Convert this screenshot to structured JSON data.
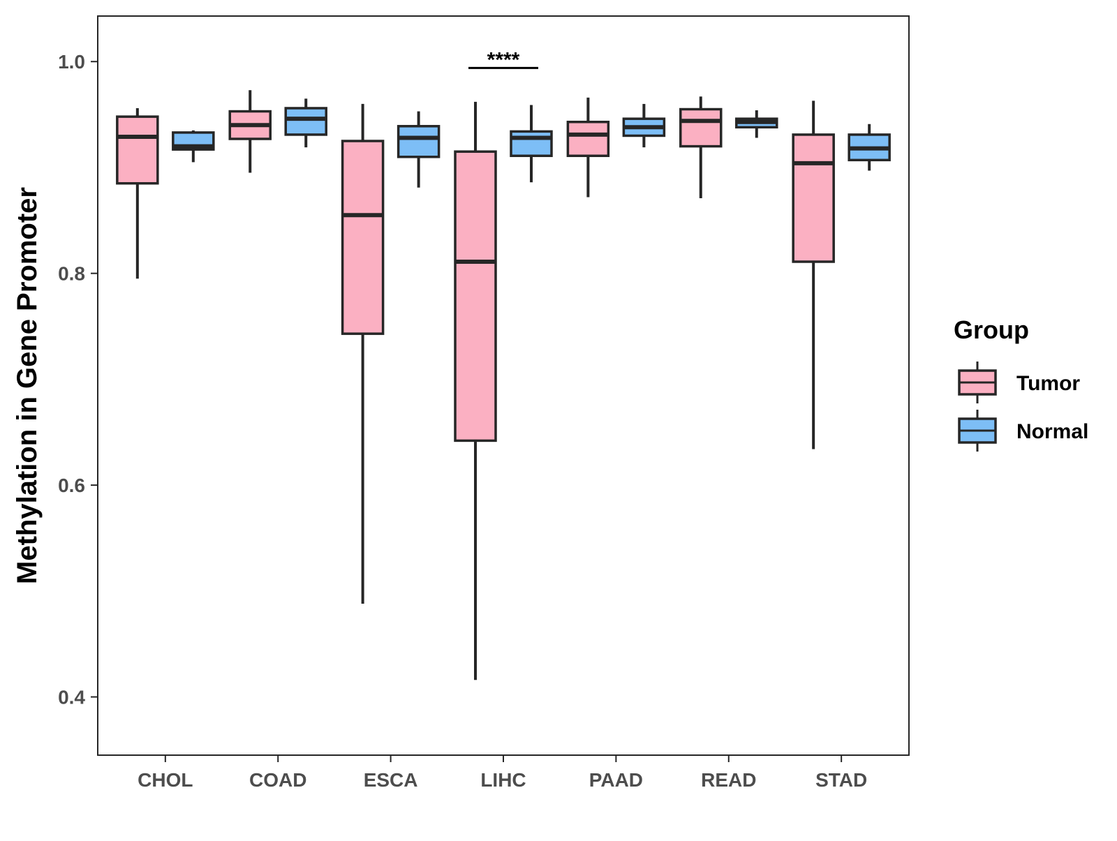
{
  "chart_data": {
    "type": "boxplot",
    "title": "",
    "xlabel": "",
    "ylabel": "Methylation in Gene Promoter",
    "ylim": [
      0.345,
      1.043
    ],
    "yticks": [
      0.4,
      0.6,
      0.8,
      1.0
    ],
    "ytick_labels": [
      "0.4",
      "0.6",
      "0.8",
      "1.0"
    ],
    "categories": [
      "CHOL",
      "COAD",
      "ESCA",
      "LIHC",
      "PAAD",
      "READ",
      "STAD"
    ],
    "grid": false,
    "legend": {
      "title": "Group",
      "position": "right",
      "items": [
        {
          "label": "Tumor",
          "color": "#fbb0c2"
        },
        {
          "label": "Normal",
          "color": "#7dbef6"
        }
      ]
    },
    "series": [
      {
        "name": "Tumor",
        "color": "#fbb0c2",
        "boxes": [
          {
            "whisker_low": 0.795,
            "q1": 0.885,
            "median": 0.929,
            "q3": 0.948,
            "whisker_high": 0.956
          },
          {
            "whisker_low": 0.895,
            "q1": 0.927,
            "median": 0.94,
            "q3": 0.953,
            "whisker_high": 0.973
          },
          {
            "whisker_low": 0.488,
            "q1": 0.743,
            "median": 0.855,
            "q3": 0.925,
            "whisker_high": 0.96
          },
          {
            "whisker_low": 0.416,
            "q1": 0.642,
            "median": 0.811,
            "q3": 0.915,
            "whisker_high": 0.962
          },
          {
            "whisker_low": 0.872,
            "q1": 0.911,
            "median": 0.931,
            "q3": 0.943,
            "whisker_high": 0.966
          },
          {
            "whisker_low": 0.871,
            "q1": 0.92,
            "median": 0.944,
            "q3": 0.955,
            "whisker_high": 0.967
          },
          {
            "whisker_low": 0.634,
            "q1": 0.811,
            "median": 0.904,
            "q3": 0.931,
            "whisker_high": 0.963
          }
        ]
      },
      {
        "name": "Normal",
        "color": "#7dbef6",
        "boxes": [
          {
            "whisker_low": 0.905,
            "q1": 0.917,
            "median": 0.92,
            "q3": 0.933,
            "whisker_high": 0.935
          },
          {
            "whisker_low": 0.919,
            "q1": 0.931,
            "median": 0.946,
            "q3": 0.956,
            "whisker_high": 0.965
          },
          {
            "whisker_low": 0.881,
            "q1": 0.91,
            "median": 0.928,
            "q3": 0.939,
            "whisker_high": 0.953
          },
          {
            "whisker_low": 0.886,
            "q1": 0.911,
            "median": 0.928,
            "q3": 0.934,
            "whisker_high": 0.959
          },
          {
            "whisker_low": 0.919,
            "q1": 0.93,
            "median": 0.938,
            "q3": 0.946,
            "whisker_high": 0.96
          },
          {
            "whisker_low": 0.928,
            "q1": 0.938,
            "median": 0.943,
            "q3": 0.946,
            "whisker_high": 0.954
          },
          {
            "whisker_low": 0.897,
            "q1": 0.907,
            "median": 0.918,
            "q3": 0.931,
            "whisker_high": 0.941
          }
        ]
      }
    ],
    "annotations": [
      {
        "label": "****",
        "category": "LIHC",
        "y": 0.994
      }
    ]
  }
}
